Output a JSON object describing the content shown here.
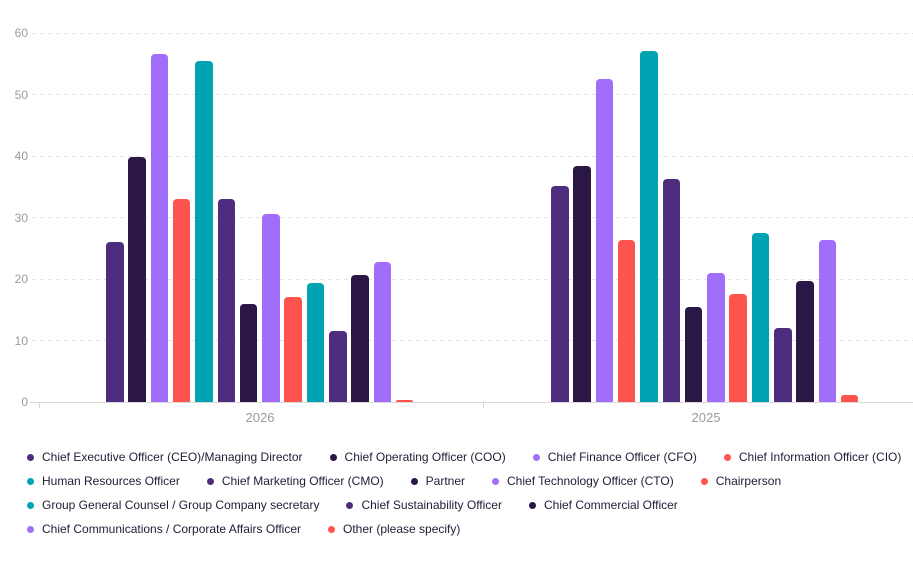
{
  "chart_data": {
    "type": "bar",
    "title": "",
    "categories": [
      "2026",
      "2025"
    ],
    "xlabel": "",
    "ylabel": "",
    "y_axis": {
      "min": 0,
      "max": 60,
      "tick_step": 10,
      "tick_labels": [
        "0",
        "10",
        "20",
        "30",
        "40",
        "50",
        "60"
      ]
    },
    "grid": "horizontal-dashed",
    "legend_position": "bottom",
    "series": [
      {
        "name": "Chief Executive Officer (CEO)/Managing Director",
        "color": "#4e2d7e",
        "values": [
          26,
          35.1
        ]
      },
      {
        "name": "Chief Operating Officer (COO)",
        "color": "#2a1745",
        "values": [
          39.8,
          38.4
        ]
      },
      {
        "name": "Chief Finance Officer (CFO)",
        "color": "#a16efc",
        "values": [
          56.6,
          52.5
        ]
      },
      {
        "name": "Chief Information Officer (CIO)",
        "color": "#ff534e",
        "values": [
          33,
          26.4
        ]
      },
      {
        "name": "Human Resources Officer",
        "color": "#00a3b1",
        "values": [
          55.5,
          57
        ]
      },
      {
        "name": "Chief Marketing Officer (CMO)",
        "color": "#4e2d7e",
        "values": [
          33,
          36.2
        ]
      },
      {
        "name": "Partner",
        "color": "#2a1745",
        "values": [
          16,
          15.4
        ]
      },
      {
        "name": "Chief Technology Officer (CTO)",
        "color": "#a16efc",
        "values": [
          30.6,
          20.9
        ]
      },
      {
        "name": "Chairperson",
        "color": "#ff534e",
        "values": [
          17,
          17.6
        ]
      },
      {
        "name": "Group General Counsel / Group Company secretary",
        "color": "#00a3b1",
        "values": [
          19.3,
          27.4
        ]
      },
      {
        "name": "Chief Sustainability Officer",
        "color": "#4e2d7e",
        "values": [
          11.6,
          12
        ]
      },
      {
        "name": "Chief Commercial Officer",
        "color": "#2a1745",
        "values": [
          20.6,
          19.7
        ]
      },
      {
        "name": "Chief Communications / Corporate Affairs Officer",
        "color": "#a16efc",
        "values": [
          22.7,
          26.4
        ]
      },
      {
        "name": "Other (please specify)",
        "color": "#ff534e",
        "values": [
          0.3,
          1.2
        ]
      }
    ],
    "legend_rows": [
      4,
      5,
      3,
      2
    ]
  },
  "colors": {
    "background": "#ffffff",
    "axis_text": "#9b9b9b",
    "legend_text": "#241a35",
    "gridline": "#e3e3e3",
    "baseline": "#d9d9d9",
    "palette": [
      "#4e2d7e",
      "#2a1745",
      "#a16efc",
      "#ff534e",
      "#00a3b1"
    ]
  }
}
